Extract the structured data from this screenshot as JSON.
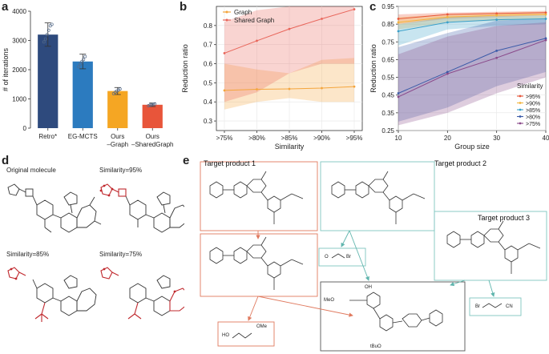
{
  "panels": {
    "a": "a",
    "b": "b",
    "c": "c",
    "d": "d",
    "e": "e"
  },
  "colors": {
    "navy": "#2e4a7d",
    "blue": "#2c7bbf",
    "orange": "#f5a623",
    "red": "#e8553a",
    "graph": "#f4a53c",
    "shared": "#e8655a",
    "red_box": "#e07a5f",
    "teal_box": "#7fc6bf",
    "c95": "#e8553a",
    "c90": "#f2b43c",
    "c85": "#3aa0c9",
    "c80": "#3a5aa8",
    "c75": "#8a4a8a"
  },
  "chart_data": [
    {
      "id": "a",
      "type": "bar",
      "ylabel": "# of iterations",
      "ylim": [
        0,
        4000
      ],
      "yticks": [
        "0",
        "1000",
        "2000",
        "3000",
        "4000"
      ],
      "yticks_values": [
        0,
        1000,
        2000,
        3000,
        4000
      ],
      "categories": [
        "Retro*",
        "EG-MCTS",
        "Ours\n-Graph",
        "Ours\n-SharedGraph"
      ],
      "category_lines": [
        [
          "Retro*"
        ],
        [
          "EG-MCTS"
        ],
        [
          "Ours",
          "–Graph"
        ],
        [
          "Ours",
          "–SharedGraph"
        ]
      ],
      "values": [
        3200,
        2280,
        1270,
        800
      ],
      "errors": [
        400,
        250,
        120,
        60
      ],
      "points": [
        [
          2950,
          3050,
          3200,
          3350,
          3500,
          3550
        ],
        [
          2100,
          2200,
          2280,
          2350,
          2450
        ],
        [
          1180,
          1230,
          1270,
          1300,
          1340
        ],
        [
          770,
          790,
          800,
          815,
          830
        ]
      ],
      "bar_colors": [
        "#2e4a7d",
        "#2c7bbf",
        "#f5a623",
        "#e8553a"
      ]
    },
    {
      "id": "b",
      "type": "line",
      "xlabel": "Similarity",
      "ylabel": "Reduction ratio",
      "categories": [
        ">75%",
        ">80%",
        ">85%",
        ">90%",
        ">95%"
      ],
      "ylim": [
        0.25,
        0.9
      ],
      "yticks": [
        "0.3",
        "0.4",
        "0.5",
        "0.6",
        "0.7",
        "0.8"
      ],
      "yticks_values": [
        0.3,
        0.4,
        0.5,
        0.6,
        0.7,
        0.8
      ],
      "series": [
        {
          "name": "Graph",
          "color": "#f4a53c",
          "values": [
            0.46,
            0.466,
            0.468,
            0.472,
            0.48
          ],
          "lower": [
            0.36,
            0.4,
            0.42,
            0.4,
            0.4
          ],
          "upper": [
            0.6,
            0.57,
            0.55,
            0.62,
            0.63
          ]
        },
        {
          "name": "Shared Graph",
          "color": "#e8655a",
          "values": [
            0.655,
            0.72,
            0.782,
            0.835,
            0.885
          ],
          "lower": [
            0.4,
            0.45,
            0.55,
            0.6,
            0.6
          ],
          "upper": [
            0.82,
            0.88,
            0.9,
            0.9,
            0.9
          ]
        }
      ]
    },
    {
      "id": "c",
      "type": "line",
      "xlabel": "Group size",
      "ylabel": "Reduction ratio",
      "x": [
        10,
        20,
        30,
        40
      ],
      "xticks": [
        "10",
        "20",
        "30",
        "40"
      ],
      "xlim": [
        10,
        40
      ],
      "ylim": [
        0.25,
        0.95
      ],
      "yticks": [
        "0.25",
        "0.35",
        "0.45",
        "0.55",
        "0.65",
        "0.75",
        "0.85",
        "0.95"
      ],
      "yticks_values": [
        0.25,
        0.35,
        0.45,
        0.55,
        0.65,
        0.75,
        0.85,
        0.95
      ],
      "legend_title": "Similarity",
      "series": [
        {
          "name": ">95%",
          "color": "#e8553a",
          "values": [
            0.88,
            0.905,
            0.91,
            0.915
          ],
          "lower": [
            0.85,
            0.88,
            0.89,
            0.9
          ],
          "upper": [
            0.905,
            0.915,
            0.92,
            0.925
          ]
        },
        {
          "name": ">90%",
          "color": "#f2b43c",
          "values": [
            0.86,
            0.89,
            0.9,
            0.905
          ],
          "lower": [
            0.82,
            0.86,
            0.87,
            0.88
          ],
          "upper": [
            0.89,
            0.905,
            0.915,
            0.92
          ]
        },
        {
          "name": ">85%",
          "color": "#3aa0c9",
          "values": [
            0.81,
            0.86,
            0.875,
            0.88
          ],
          "lower": [
            0.73,
            0.82,
            0.84,
            0.85
          ],
          "upper": [
            0.85,
            0.89,
            0.895,
            0.9
          ]
        },
        {
          "name": ">80%",
          "color": "#3a5aa8",
          "values": [
            0.46,
            0.58,
            0.7,
            0.77
          ],
          "lower": [
            0.3,
            0.38,
            0.5,
            0.58
          ],
          "upper": [
            0.72,
            0.8,
            0.87,
            0.88
          ]
        },
        {
          "name": ">75%",
          "color": "#8a4a8a",
          "values": [
            0.44,
            0.57,
            0.66,
            0.76
          ],
          "lower": [
            0.28,
            0.35,
            0.46,
            0.55
          ],
          "upper": [
            0.68,
            0.78,
            0.84,
            0.86
          ]
        }
      ]
    }
  ],
  "panel_d": {
    "captions": [
      "Original molecule",
      "Similarity=95%",
      "Similarity=85%",
      "Similarity=75%"
    ]
  },
  "panel_e": {
    "target1": "Target product 1",
    "target2": "Target product 2",
    "target3": "Target product 3",
    "reagent_left": "HO",
    "reagent_left_ome": "OMe",
    "reagent_mid_ome": "O",
    "reagent_mid_br": "Br",
    "reagent_right_br": "Br",
    "reagent_right_cn": "CN",
    "big_meo": "MeO",
    "big_oh": "OH",
    "big_tbuo": "tBuO"
  }
}
